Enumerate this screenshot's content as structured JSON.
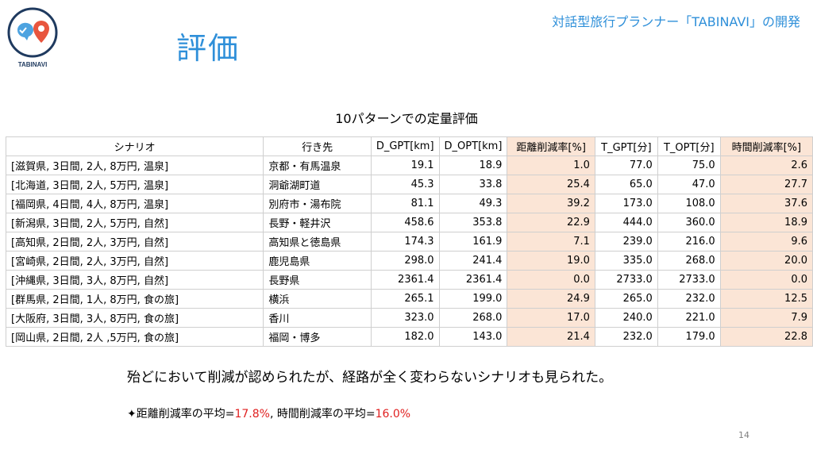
{
  "logo": {
    "text": "TABINAVI"
  },
  "slide": {
    "title": "評価",
    "header": "対話型旅行プランナー「TABINAVI」の開発",
    "table_title": "10パターンでの定量評価",
    "summary": "殆どにおいて削減が認められたが、経路が全く変わらないシナリオも見られた。",
    "avg_prefix": "✦距離削減率の平均=",
    "avg_dist": "17.8%",
    "avg_mid": ", 時間削減率の平均=",
    "avg_time": "16.0%",
    "page_number": "14"
  },
  "table": {
    "headers": [
      "シナリオ",
      "行き先",
      "D_GPT[km]",
      "D_OPT[km]",
      "距離削減率[%]",
      "T_GPT[分]",
      "T_OPT[分]",
      "時間削減率[%]"
    ],
    "rows": [
      [
        "[滋賀県, 3日間, 2人, 8万円, 温泉]",
        "京都・有馬温泉",
        "19.1",
        "18.9",
        "1.0",
        "77.0",
        "75.0",
        "2.6"
      ],
      [
        "[北海道, 3日間, 2人, 5万円, 温泉]",
        "洞爺湖町道",
        "45.3",
        "33.8",
        "25.4",
        "65.0",
        "47.0",
        "27.7"
      ],
      [
        "[福岡県, 4日間, 4人, 8万円, 温泉]",
        "別府市・湯布院",
        "81.1",
        "49.3",
        "39.2",
        "173.0",
        "108.0",
        "37.6"
      ],
      [
        "[新潟県, 3日間, 2人, 5万円, 自然]",
        "長野・軽井沢",
        "458.6",
        "353.8",
        "22.9",
        "444.0",
        "360.0",
        "18.9"
      ],
      [
        "[高知県, 2日間, 2人, 3万円, 自然]",
        "高知県と徳島県",
        "174.3",
        "161.9",
        "7.1",
        "239.0",
        "216.0",
        "9.6"
      ],
      [
        "[宮崎県, 2日間, 2人, 3万円, 自然]",
        "鹿児島県",
        "298.0",
        "241.4",
        "19.0",
        "335.0",
        "268.0",
        "20.0"
      ],
      [
        "[沖縄県, 3日間, 3人, 8万円, 自然]",
        "長野県",
        "2361.4",
        "2361.4",
        "0.0",
        "2733.0",
        "2733.0",
        "0.0"
      ],
      [
        "[群馬県, 2日間, 1人, 8万円, 食の旅]",
        "横浜",
        "265.1",
        "199.0",
        "24.9",
        "265.0",
        "232.0",
        "12.5"
      ],
      [
        "[大阪府, 3日間, 3人, 8万円, 食の旅]",
        "香川",
        "323.0",
        "268.0",
        "17.0",
        "240.0",
        "221.0",
        "7.9"
      ],
      [
        "[岡山県, 2日間, 2人 ,5万円, 食の旅]",
        "福岡・博多",
        "182.0",
        "143.0",
        "21.4",
        "232.0",
        "179.0",
        "22.8"
      ]
    ]
  },
  "colors": {
    "title_blue": "#2e8fd9",
    "highlight": "#fbe5d6",
    "red": "#e02020"
  }
}
